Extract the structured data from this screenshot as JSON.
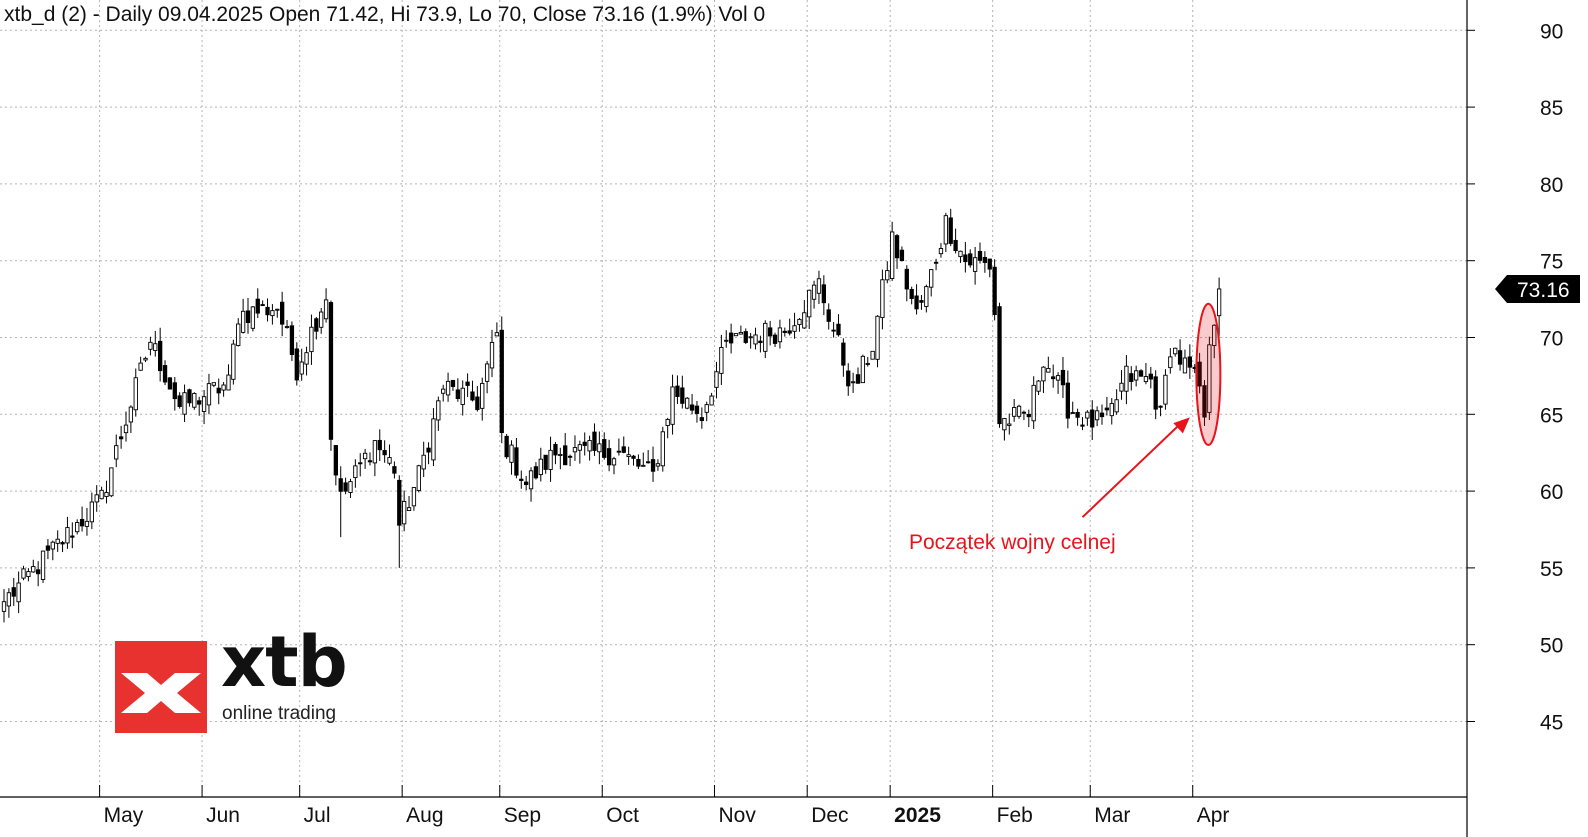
{
  "header": {
    "text": "xtb_d (2) - Daily 09.04.2025 Open 71.42, Hi 73.9, Lo 70, Close 73.16 (1.9%) Vol 0"
  },
  "logo": {
    "wordmark": "xtb",
    "tagline": "online trading",
    "color": "#e7322f"
  },
  "annotation": {
    "text": "Początek wojny celnej",
    "color": "#e8141b"
  },
  "last_price_label": "73.16",
  "chart_data": {
    "type": "candlestick",
    "symbol": "xtb_d (2)",
    "interval": "Daily",
    "last_bar": {
      "date": "09.04.2025",
      "open": 71.42,
      "high": 73.9,
      "low": 70,
      "close": 73.16,
      "change_pct": "1.9%",
      "volume": 0
    },
    "y_axis": {
      "ticks": [
        45,
        50,
        55,
        60,
        65,
        70,
        75,
        80,
        85,
        90
      ],
      "range": [
        40,
        92
      ]
    },
    "x_axis": {
      "month_labels": [
        {
          "label": "May",
          "bar": 20,
          "bold": false
        },
        {
          "label": "Jun",
          "bar": 41,
          "bold": false
        },
        {
          "label": "Jul",
          "bar": 61,
          "bold": false
        },
        {
          "label": "Aug",
          "bar": 82,
          "bold": false
        },
        {
          "label": "Sep",
          "bar": 102,
          "bold": false
        },
        {
          "label": "Oct",
          "bar": 123,
          "bold": false
        },
        {
          "label": "Nov",
          "bar": 146,
          "bold": false
        },
        {
          "label": "Dec",
          "bar": 165,
          "bold": false
        },
        {
          "label": "2025",
          "bar": 182,
          "bold": true
        },
        {
          "label": "Feb",
          "bar": 203,
          "bold": false
        },
        {
          "label": "Mar",
          "bar": 223,
          "bold": false
        },
        {
          "label": "Apr",
          "bar": 244,
          "bold": false
        }
      ]
    },
    "grid": true,
    "up_color": "#ffffff",
    "down_color": "#000000",
    "annotation_ellipse": {
      "bar": 247,
      "price_low": 63,
      "price_high": 72.2,
      "color": "#e8141b"
    },
    "arrow": {
      "from_bar": 221,
      "from_price": 58.3,
      "to_bar": 243,
      "to_price": 64.8
    },
    "key_points": [
      [
        0,
        52.8
      ],
      [
        20,
        59.5
      ],
      [
        30,
        69.8
      ],
      [
        36,
        65.5
      ],
      [
        46,
        67
      ],
      [
        48,
        71.5
      ],
      [
        56,
        72
      ],
      [
        60,
        68
      ],
      [
        66,
        72.8
      ],
      [
        67,
        63.5
      ],
      [
        69,
        59.5
      ],
      [
        76,
        63.2
      ],
      [
        80,
        61.5
      ],
      [
        81,
        57.8
      ],
      [
        85,
        61
      ],
      [
        90,
        66.8
      ],
      [
        97,
        65.8
      ],
      [
        101,
        70.2
      ],
      [
        102,
        63.5
      ],
      [
        107,
        60.5
      ],
      [
        113,
        62.5
      ],
      [
        120,
        62.5
      ],
      [
        126,
        62.5
      ],
      [
        133,
        61
      ],
      [
        137,
        66.5
      ],
      [
        143,
        65
      ],
      [
        148,
        69.5
      ],
      [
        154,
        70.2
      ],
      [
        160,
        70.5
      ],
      [
        167,
        73.5
      ],
      [
        174,
        66.5
      ],
      [
        178,
        69.5
      ],
      [
        182,
        76.5
      ],
      [
        187,
        71.5
      ],
      [
        189,
        73
      ],
      [
        193,
        77.5
      ],
      [
        197,
        75
      ],
      [
        202,
        74.7
      ],
      [
        203,
        71.6
      ],
      [
        204,
        64.5
      ],
      [
        210,
        65
      ],
      [
        213,
        68.8
      ],
      [
        218,
        65.5
      ],
      [
        222,
        64.5
      ],
      [
        226,
        64.5
      ],
      [
        230,
        67.5
      ],
      [
        235,
        67.2
      ],
      [
        237,
        64.8
      ],
      [
        239,
        69.5
      ],
      [
        245,
        66.8
      ],
      [
        246,
        64.2
      ],
      [
        247,
        70
      ],
      [
        248,
        71.4
      ],
      [
        249,
        73.16
      ]
    ]
  }
}
